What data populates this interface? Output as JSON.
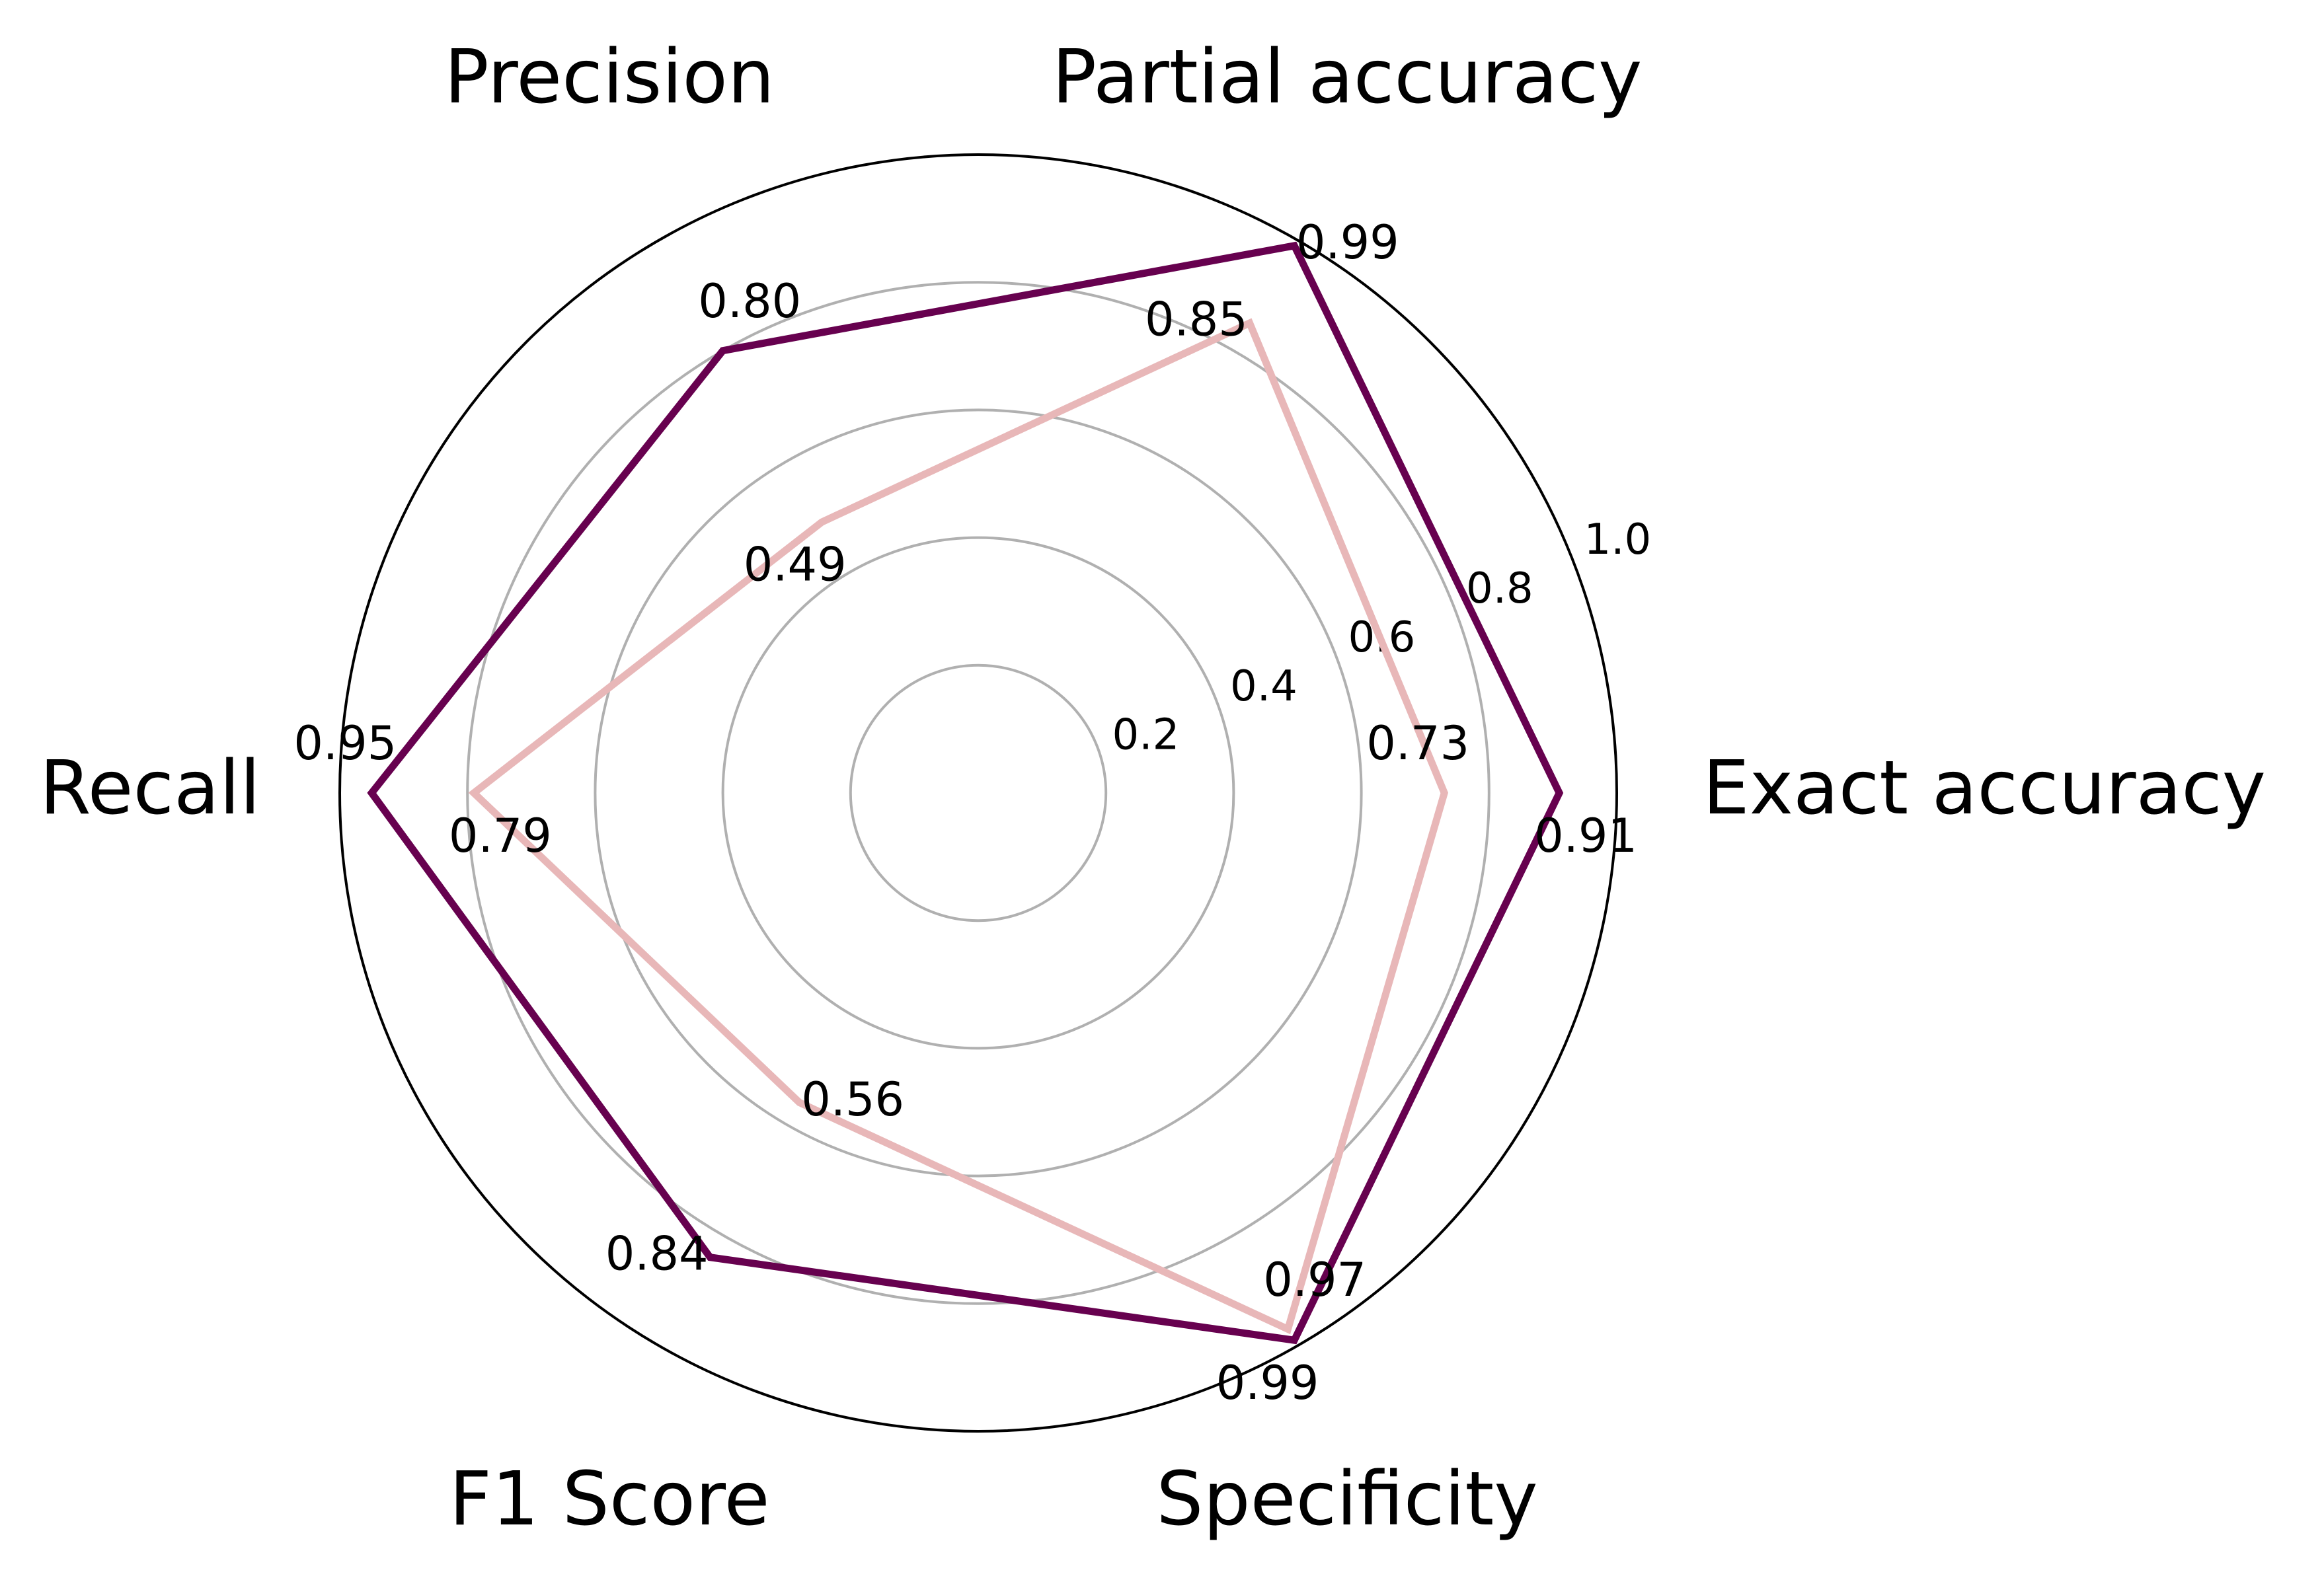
{
  "chart_data": {
    "type": "radar",
    "axes": [
      "Exact accuracy",
      "Partial accuracy",
      "Precision",
      "Recall",
      "F1 Score",
      "Specificity"
    ],
    "rlim": [
      0,
      1.0
    ],
    "rticks": [
      0.2,
      0.4,
      0.6,
      0.8,
      1.0
    ],
    "rtick_labels": [
      "0.2",
      "0.4",
      "0.6",
      "0.8",
      "1.0"
    ],
    "grid": true,
    "series": [
      {
        "color": "#67014f",
        "values": [
          0.91,
          0.99,
          0.8,
          0.95,
          0.84,
          0.99
        ],
        "labels": [
          "0.91",
          "0.99",
          "0.80",
          "0.95",
          "0.84",
          "0.99"
        ]
      },
      {
        "color": "#e8b7b8",
        "values": [
          0.73,
          0.85,
          0.49,
          0.79,
          0.56,
          0.97
        ],
        "labels": [
          "0.73",
          "0.85",
          "0.49",
          "0.79",
          "0.56",
          "0.97"
        ]
      }
    ]
  },
  "colors": {
    "grid": "#b0b0b0",
    "frame": "#000000"
  }
}
